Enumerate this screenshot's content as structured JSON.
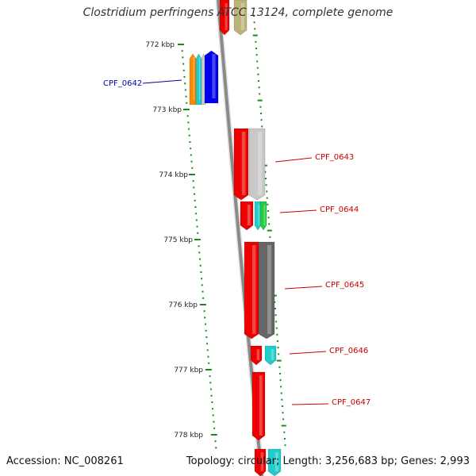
{
  "header": {
    "title": "Clostridium perfringens ATCC 13124, complete genome"
  },
  "footer": {
    "accession": "Accession: NC_008261",
    "summary": "Topology: circular; Length: 3,256,683 bp; Genes: 2,993"
  },
  "scale": {
    "tick_labels": [
      "772 kbp",
      "773 kbp",
      "774 kbp",
      "775 kbp",
      "776 kbp",
      "777 kbp",
      "778 kbp"
    ]
  },
  "genes": [
    {
      "label": "CPF_0642",
      "color": "#0000aa"
    },
    {
      "label": "CPF_0643",
      "color": "#cc0000"
    },
    {
      "label": "CPF_0644",
      "color": "#cc0000"
    },
    {
      "label": "CPF_0645",
      "color": "#cc0000"
    },
    {
      "label": "CPF_0646",
      "color": "#cc0000"
    },
    {
      "label": "CPF_0647",
      "color": "#cc0000"
    }
  ],
  "colors": {
    "backbone": "#8a8a8a",
    "ticks": "#1a8a1a",
    "red": "#ee0000",
    "blue": "#0000ee",
    "orange": "#ff8800",
    "cyan": "#22cccc",
    "green": "#22cc44",
    "light_gray": "#c8c8c8",
    "dark_gray": "#666666",
    "olive": "#bbb377"
  }
}
